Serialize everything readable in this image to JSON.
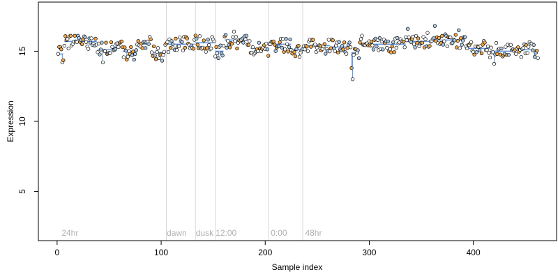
{
  "chart_data": {
    "type": "scatter",
    "xlabel": "Sample index",
    "ylabel": "Expression",
    "xlim": [
      -18,
      480
    ],
    "ylim": [
      1.5,
      18.5
    ],
    "x_ticks": [
      0,
      100,
      200,
      300,
      400
    ],
    "y_ticks": [
      5,
      10,
      15
    ],
    "grid": false,
    "legend": "none",
    "colors": {
      "segment_line": "#5b8fe0",
      "accent_point": "#f5a742",
      "cool_point": "#a9c8e8",
      "vline": "#d9d9d9",
      "annotation": "#b0b0b0"
    },
    "annotations": [
      {
        "x": 3,
        "label": "24hr"
      },
      {
        "x": 104,
        "label": "dawn"
      },
      {
        "x": 132,
        "label": "dusk"
      },
      {
        "x": 151,
        "label": "12:00"
      },
      {
        "x": 204,
        "label": "0:00"
      },
      {
        "x": 237,
        "label": "48hr"
      }
    ],
    "vlines": [
      105,
      133,
      152,
      203,
      236
    ],
    "segments": [
      {
        "x0": 1,
        "x1": 6,
        "y": 14.8
      },
      {
        "x0": 7,
        "x1": 38,
        "y": 15.7
      },
      {
        "x0": 39,
        "x1": 52,
        "y": 15.1
      },
      {
        "x0": 53,
        "x1": 62,
        "y": 15.3
      },
      {
        "x0": 63,
        "x1": 75,
        "y": 15.0
      },
      {
        "x0": 76,
        "x1": 90,
        "y": 15.5
      },
      {
        "x0": 91,
        "x1": 104,
        "y": 14.9
      },
      {
        "x0": 105,
        "x1": 132,
        "y": 15.5
      },
      {
        "x0": 133,
        "x1": 151,
        "y": 15.6
      },
      {
        "x0": 152,
        "x1": 160,
        "y": 15.0
      },
      {
        "x0": 161,
        "x1": 185,
        "y": 15.8
      },
      {
        "x0": 186,
        "x1": 203,
        "y": 15.2
      },
      {
        "x0": 204,
        "x1": 225,
        "y": 15.5
      },
      {
        "x0": 226,
        "x1": 236,
        "y": 15.1
      },
      {
        "x0": 237,
        "x1": 262,
        "y": 15.4
      },
      {
        "x0": 263,
        "x1": 282,
        "y": 15.3
      },
      {
        "x0": 283,
        "x1": 290,
        "y": 14.9
      },
      {
        "x0": 291,
        "x1": 335,
        "y": 15.5
      },
      {
        "x0": 336,
        "x1": 362,
        "y": 15.7
      },
      {
        "x0": 363,
        "x1": 392,
        "y": 15.8
      },
      {
        "x0": 393,
        "x1": 415,
        "y": 15.2
      },
      {
        "x0": 416,
        "x1": 440,
        "y": 15.0
      },
      {
        "x0": 441,
        "x1": 462,
        "y": 15.1
      }
    ],
    "dips": [
      {
        "x": 5,
        "y": 14.2
      },
      {
        "x": 44,
        "y": 14.2
      },
      {
        "x": 67,
        "y": 14.4
      },
      {
        "x": 98,
        "y": 14.5
      },
      {
        "x": 155,
        "y": 14.5
      },
      {
        "x": 233,
        "y": 14.6
      },
      {
        "x": 284,
        "y": 13.0
      },
      {
        "x": 283,
        "y": 13.8
      },
      {
        "x": 420,
        "y": 14.1
      },
      {
        "x": 459,
        "y": 14.6
      }
    ],
    "peaks": [
      {
        "x": 17,
        "y": 16.1
      },
      {
        "x": 20,
        "y": 16.1
      },
      {
        "x": 169,
        "y": 16.0
      },
      {
        "x": 337,
        "y": 16.6
      },
      {
        "x": 363,
        "y": 16.8
      },
      {
        "x": 386,
        "y": 16.5
      }
    ]
  }
}
